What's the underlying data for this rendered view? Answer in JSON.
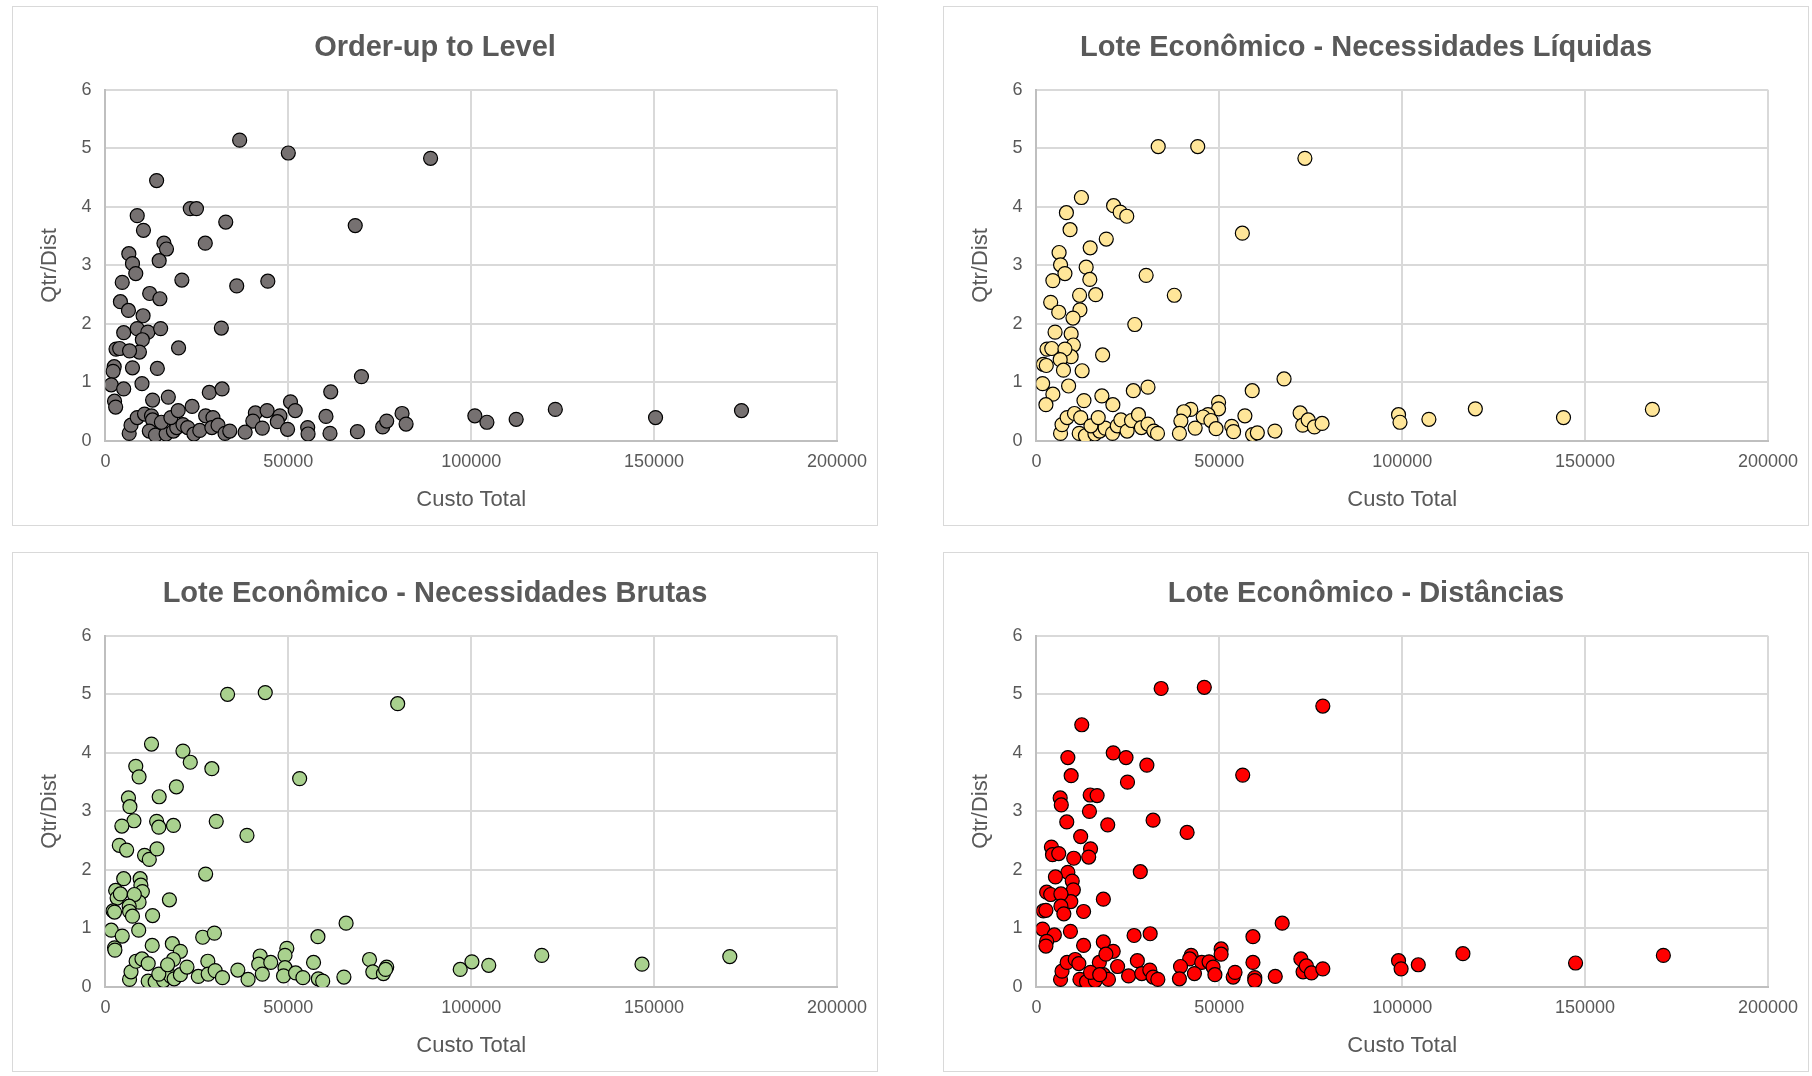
{
  "chart_data": [
    {
      "type": "scatter",
      "title": "Order-up to Level",
      "xlabel": "Custo Total",
      "ylabel": "Qtr/Dist",
      "xlim": [
        0,
        200000
      ],
      "xticks": [
        0,
        50000,
        100000,
        150000,
        200000
      ],
      "ylim": [
        0,
        6
      ],
      "yticks": [
        0,
        1,
        2,
        3,
        4,
        5,
        6
      ],
      "grid": true,
      "legend": false,
      "marker": "circle",
      "color": "#767171",
      "x": [
        36700,
        50000,
        88900,
        14000,
        8700,
        23200,
        24900,
        32900,
        10400,
        68300,
        16000,
        16700,
        27300,
        6400,
        7400,
        8300,
        14700,
        4600,
        20900,
        35900,
        44400,
        12100,
        14900,
        4100,
        6300,
        10300,
        5000,
        8700,
        11600,
        15100,
        31700,
        10100,
        9300,
        2900,
        3900,
        6600,
        20000,
        2400,
        2100,
        7400,
        14200,
        1600,
        5000,
        10000,
        2500,
        2800,
        28400,
        31900,
        17200,
        12900,
        70000,
        61600,
        50600,
        51900,
        23700,
        41000,
        44200,
        47700,
        40300,
        42900,
        47000,
        49800,
        55300,
        55400,
        60300,
        61400,
        68900,
        75800,
        76900,
        81100,
        82200,
        101000,
        104300,
        112300,
        123000,
        150400,
        173900,
        6500,
        7000,
        8700,
        10700,
        12600,
        12900,
        12000,
        13700,
        16600,
        18600,
        19500,
        21200,
        22500,
        24200,
        25800,
        27400,
        29400,
        29100,
        30800,
        32700,
        34000,
        38200,
        15300,
        17900,
        19900
      ],
      "values": [
        5.14,
        4.92,
        4.83,
        4.45,
        3.85,
        3.97,
        3.97,
        3.74,
        3.6,
        3.68,
        3.38,
        3.28,
        3.38,
        3.2,
        3.03,
        2.86,
        3.08,
        2.71,
        2.75,
        2.65,
        2.73,
        2.52,
        2.43,
        2.38,
        2.23,
        2.14,
        1.85,
        1.92,
        1.86,
        1.92,
        1.93,
        1.73,
        1.52,
        1.57,
        1.58,
        1.54,
        1.59,
        1.27,
        1.19,
        1.25,
        1.24,
        0.96,
        0.89,
        0.98,
        0.68,
        0.58,
        0.83,
        0.89,
        0.75,
        0.7,
        1.1,
        0.84,
        0.67,
        0.52,
        0.59,
        0.48,
        0.52,
        0.43,
        0.34,
        0.22,
        0.33,
        0.2,
        0.23,
        0.12,
        0.42,
        0.13,
        0.16,
        0.24,
        0.34,
        0.47,
        0.29,
        0.43,
        0.32,
        0.37,
        0.54,
        0.4,
        0.52,
        0.13,
        0.27,
        0.4,
        0.46,
        0.43,
        0.36,
        0.17,
        0.1,
        0.12,
        0.17,
        0.23,
        0.28,
        0.23,
        0.12,
        0.18,
        0.43,
        0.4,
        0.23,
        0.27,
        0.13,
        0.17,
        0.15,
        0.32,
        0.4,
        0.52
      ]
    },
    {
      "type": "scatter",
      "title": "Lote Econômico - Necessidades Líquidas",
      "xlabel": "Custo Total",
      "ylabel": "Qtr/Dist",
      "xlim": [
        0,
        200000
      ],
      "xticks": [
        0,
        50000,
        100000,
        150000,
        200000
      ],
      "ylim": [
        0,
        6
      ],
      "yticks": [
        0,
        1,
        2,
        3,
        4,
        5,
        6
      ],
      "grid": true,
      "legend": false,
      "marker": "circle",
      "color": "#ffe699",
      "x": [
        33300,
        44100,
        73400,
        12300,
        21100,
        22900,
        24700,
        8200,
        9200,
        56300,
        19100,
        14700,
        6200,
        6600,
        7800,
        13600,
        14600,
        4500,
        30000,
        37700,
        11800,
        16200,
        3900,
        6100,
        11900,
        10000,
        26900,
        5100,
        9500,
        10100,
        9500,
        2900,
        4200,
        7800,
        18100,
        1900,
        2700,
        6500,
        7400,
        12500,
        1700,
        4500,
        8800,
        2600,
        13000,
        17900,
        26500,
        30500,
        67700,
        59000,
        49800,
        49800,
        20900,
        42200,
        40300,
        46900,
        45600,
        47700,
        39500,
        43400,
        49100,
        39100,
        53400,
        53900,
        57000,
        59100,
        60400,
        65200,
        72100,
        72800,
        74300,
        76000,
        78100,
        99000,
        99400,
        107300,
        120000,
        144100,
        168400,
        6600,
        7000,
        8400,
        10400,
        12100,
        11700,
        13400,
        16000,
        17300,
        18800,
        20800,
        22100,
        23100,
        24800,
        26000,
        27900,
        28700,
        30500,
        32100,
        33100,
        14900,
        16900
      ],
      "values": [
        5.03,
        5.03,
        4.83,
        4.16,
        4.02,
        3.91,
        3.84,
        3.9,
        3.61,
        3.55,
        3.45,
        3.3,
        3.22,
        3.01,
        2.86,
        2.97,
        2.76,
        2.74,
        2.83,
        2.49,
        2.49,
        2.5,
        2.37,
        2.2,
        2.24,
        2.1,
        1.99,
        1.86,
        1.83,
        1.64,
        1.44,
        1.57,
        1.58,
        1.57,
        1.47,
        1.31,
        1.29,
        1.39,
        1.21,
        1.2,
        0.98,
        0.8,
        0.94,
        0.62,
        0.69,
        0.77,
        0.86,
        0.92,
        1.06,
        0.86,
        0.66,
        0.55,
        0.62,
        0.54,
        0.5,
        0.45,
        0.41,
        0.35,
        0.34,
        0.22,
        0.21,
        0.13,
        0.25,
        0.16,
        0.43,
        0.11,
        0.14,
        0.17,
        0.48,
        0.27,
        0.36,
        0.24,
        0.3,
        0.45,
        0.32,
        0.37,
        0.55,
        0.4,
        0.54,
        0.13,
        0.28,
        0.4,
        0.47,
        0.4,
        0.13,
        0.09,
        0.12,
        0.17,
        0.22,
        0.13,
        0.26,
        0.36,
        0.17,
        0.35,
        0.45,
        0.23,
        0.29,
        0.17,
        0.13,
        0.26,
        0.4
      ]
    },
    {
      "type": "scatter",
      "title": "Lote Econômico - Necessidades Brutas",
      "xlabel": "Custo Total",
      "ylabel": "Qtr/Dist",
      "xlim": [
        0,
        200000
      ],
      "xticks": [
        0,
        50000,
        100000,
        150000,
        200000
      ],
      "ylim": [
        0,
        6
      ],
      "yticks": [
        0,
        1,
        2,
        3,
        4,
        5,
        6
      ],
      "grid": true,
      "legend": false,
      "marker": "circle",
      "color": "#a9d18e",
      "x": [
        33400,
        43700,
        79900,
        12600,
        21200,
        23200,
        29100,
        8300,
        9200,
        53100,
        19400,
        14700,
        6300,
        6700,
        7800,
        14000,
        14600,
        18600,
        4500,
        30300,
        38700,
        3800,
        5800,
        10700,
        12000,
        14100,
        27400,
        5000,
        9500,
        9700,
        10100,
        9200,
        2800,
        3200,
        4100,
        7900,
        17500,
        2100,
        2500,
        6500,
        6600,
        7400,
        12900,
        1600,
        4600,
        9100,
        2500,
        2600,
        12800,
        18300,
        26600,
        29800,
        65800,
        58100,
        49600,
        49100,
        49100,
        20500,
        42300,
        41900,
        45200,
        42900,
        39000,
        36200,
        48700,
        52000,
        54000,
        56900,
        58200,
        59400,
        65200,
        72200,
        73100,
        76000,
        76900,
        76600,
        97000,
        100200,
        104800,
        119300,
        146700,
        170700,
        6600,
        7000,
        8400,
        10000,
        11700,
        11700,
        13600,
        15900,
        17900,
        18800,
        18600,
        20500,
        22300,
        25400,
        28000,
        28100,
        30000,
        32000,
        14600,
        17000
      ],
      "values": [
        5.0,
        5.03,
        4.84,
        4.15,
        4.03,
        3.84,
        3.73,
        3.77,
        3.59,
        3.56,
        3.42,
        3.25,
        3.23,
        3.08,
        2.84,
        2.83,
        2.73,
        2.76,
        2.75,
        2.83,
        2.59,
        2.42,
        2.34,
        2.25,
        2.18,
        2.36,
        1.93,
        1.85,
        1.85,
        1.74,
        1.63,
        1.45,
        1.65,
        1.52,
        1.59,
        1.58,
        1.49,
        1.3,
        1.28,
        1.38,
        1.29,
        1.21,
        1.22,
        0.97,
        0.87,
        0.97,
        0.67,
        0.63,
        0.71,
        0.74,
        0.85,
        0.92,
        1.09,
        0.86,
        0.66,
        0.54,
        0.33,
        0.61,
        0.53,
        0.39,
        0.42,
        0.22,
        0.13,
        0.29,
        0.19,
        0.24,
        0.16,
        0.42,
        0.14,
        0.1,
        0.17,
        0.47,
        0.26,
        0.23,
        0.34,
        0.3,
        0.3,
        0.43,
        0.37,
        0.54,
        0.39,
        0.52,
        0.13,
        0.26,
        0.44,
        0.48,
        0.4,
        0.1,
        0.09,
        0.11,
        0.18,
        0.14,
        0.47,
        0.21,
        0.34,
        0.18,
        0.44,
        0.22,
        0.28,
        0.16,
        0.22,
        0.38
      ]
    },
    {
      "type": "scatter",
      "title": "Lote Econômico - Distâncias",
      "xlabel": "Custo Total",
      "ylabel": "Qtr/Dist",
      "xlim": [
        0,
        200000
      ],
      "xticks": [
        0,
        50000,
        100000,
        150000,
        200000
      ],
      "ylim": [
        0,
        6
      ],
      "yticks": [
        0,
        1,
        2,
        3,
        4,
        5,
        6
      ],
      "grid": true,
      "legend": false,
      "marker": "circle",
      "color": "#ff0000",
      "x": [
        34100,
        45900,
        78300,
        12400,
        21000,
        24500,
        30200,
        8600,
        9500,
        56400,
        24900,
        14700,
        16600,
        6500,
        6800,
        14500,
        8300,
        19500,
        31900,
        41200,
        12100,
        4100,
        4400,
        6100,
        14800,
        14300,
        10200,
        28400,
        8600,
        5200,
        9800,
        10100,
        9400,
        2800,
        3900,
        6700,
        18300,
        1900,
        2600,
        6700,
        7500,
        12900,
        1700,
        4900,
        9300,
        2800,
        2600,
        12900,
        18300,
        26700,
        31100,
        67200,
        59200,
        50500,
        50500,
        21000,
        42300,
        41900,
        45200,
        47200,
        48300,
        39400,
        39100,
        43200,
        48800,
        53800,
        54300,
        59200,
        59700,
        59700,
        65300,
        72300,
        72900,
        73800,
        75200,
        78300,
        99000,
        99700,
        104400,
        116600,
        147400,
        171400,
        6600,
        7000,
        8400,
        10600,
        11600,
        11900,
        13700,
        16100,
        17200,
        18300,
        19700,
        19000,
        22200,
        25200,
        27600,
        28800,
        31000,
        31900,
        33200,
        14800,
        17300
      ],
      "values": [
        5.1,
        5.12,
        4.8,
        4.48,
        4.0,
        3.92,
        3.79,
        3.92,
        3.61,
        3.62,
        3.5,
        3.28,
        3.27,
        3.23,
        3.11,
        3.0,
        2.82,
        2.77,
        2.85,
        2.64,
        2.57,
        2.39,
        2.26,
        2.28,
        2.36,
        2.22,
        2.2,
        1.97,
        1.96,
        1.88,
        1.81,
        1.66,
        1.46,
        1.62,
        1.58,
        1.59,
        1.5,
        1.3,
        1.31,
        1.38,
        1.25,
        1.29,
        0.99,
        0.89,
        0.95,
        0.78,
        0.7,
        0.71,
        0.77,
        0.88,
        0.91,
        1.09,
        0.86,
        0.65,
        0.56,
        0.61,
        0.54,
        0.48,
        0.42,
        0.43,
        0.34,
        0.35,
        0.14,
        0.23,
        0.21,
        0.17,
        0.25,
        0.42,
        0.16,
        0.11,
        0.18,
        0.48,
        0.26,
        0.36,
        0.24,
        0.31,
        0.45,
        0.31,
        0.38,
        0.57,
        0.41,
        0.54,
        0.13,
        0.27,
        0.42,
        0.47,
        0.4,
        0.13,
        0.09,
        0.11,
        0.42,
        0.21,
        0.13,
        0.56,
        0.35,
        0.19,
        0.45,
        0.23,
        0.29,
        0.17,
        0.13,
        0.25,
        0.21
      ]
    }
  ]
}
